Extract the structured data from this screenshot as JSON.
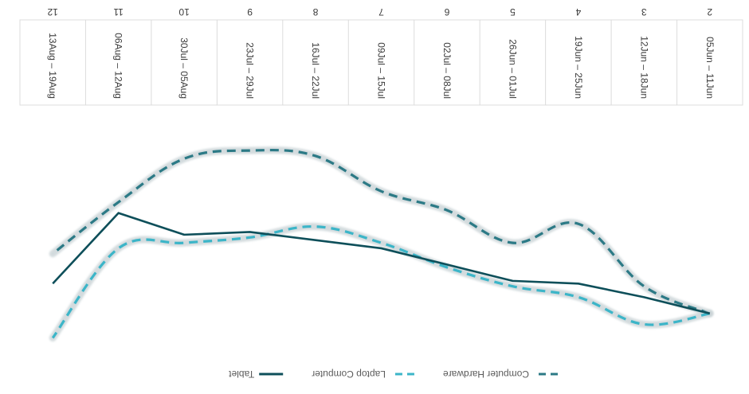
{
  "chart_data": {
    "type": "line",
    "orientation": "upside-down",
    "categories": [
      {
        "week": "2",
        "range": "05Jun – 11Jun"
      },
      {
        "week": "3",
        "range": "12Jun – 18Jun"
      },
      {
        "week": "4",
        "range": "19Jun – 25Jun"
      },
      {
        "week": "5",
        "range": "26Jun – 01Jul"
      },
      {
        "week": "6",
        "range": "02Jul – 08Jul"
      },
      {
        "week": "7",
        "range": "09Jul – 15Jul"
      },
      {
        "week": "8",
        "range": "16Jul – 22Jul"
      },
      {
        "week": "9",
        "range": "23Jul – 29Jul"
      },
      {
        "week": "10",
        "range": "30Jul – 05Aug"
      },
      {
        "week": "11",
        "range": "06Aug – 12Aug"
      },
      {
        "week": "12",
        "range": "13Aug – 19Aug"
      }
    ],
    "series": [
      {
        "name": "Computer Hardware",
        "style": "dashed-glow",
        "color": "#2c7a86",
        "values": [
          0,
          10,
          33,
          26,
          38,
          45,
          58,
          60,
          57,
          41,
          22
        ]
      },
      {
        "name": "Laptop Computer",
        "style": "dashed-glow",
        "color": "#3cb5c8",
        "values": [
          0,
          -4,
          6,
          10,
          17,
          26,
          32,
          28,
          26,
          24,
          -9
        ]
      },
      {
        "name": "Tablet",
        "style": "solid",
        "color": "#0e4f5a",
        "values": [
          0,
          6,
          11,
          12,
          18,
          24,
          27,
          30,
          29,
          37,
          11
        ]
      }
    ],
    "ylim": [
      -15,
      70
    ],
    "grid": false,
    "legend_position": "bottom"
  }
}
